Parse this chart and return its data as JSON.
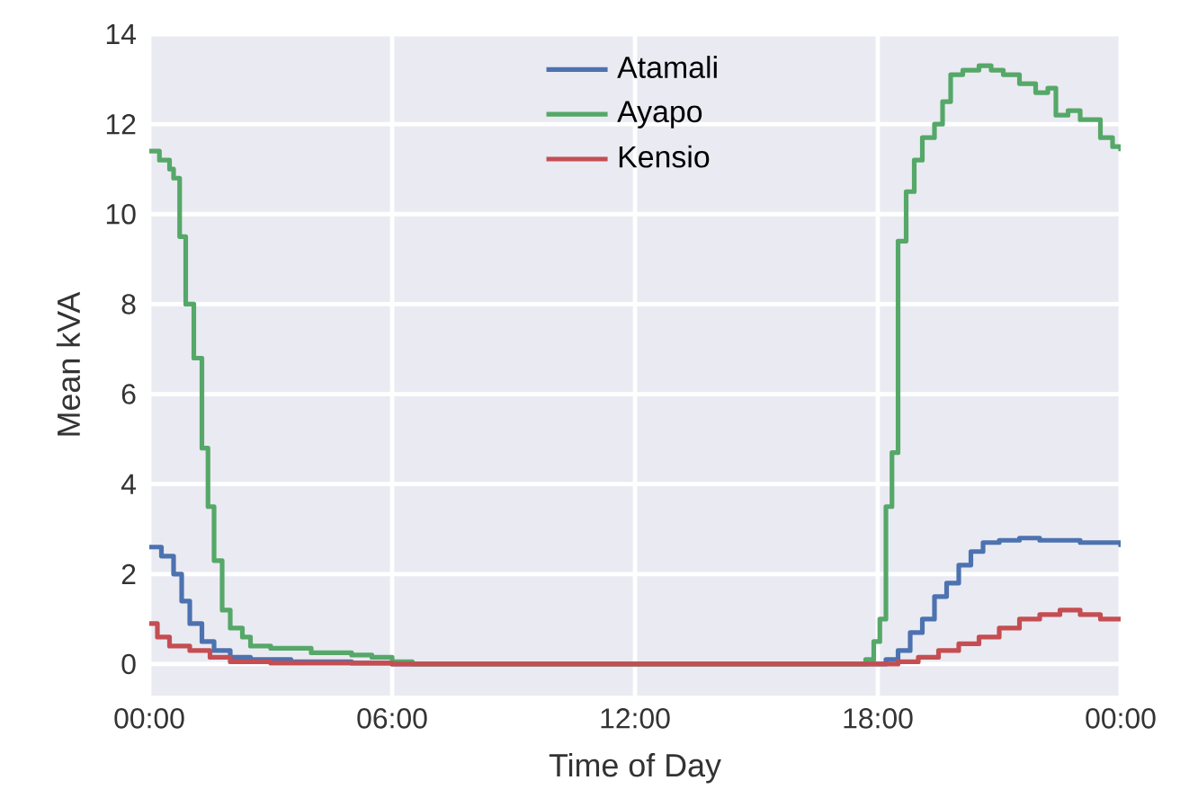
{
  "chart_data": {
    "type": "step",
    "xlabel": "Time of Day",
    "ylabel": "Mean kVA",
    "xlim": [
      0,
      24
    ],
    "ylim": [
      -0.7,
      14
    ],
    "xticks": [
      {
        "value": 0,
        "label": "00:00"
      },
      {
        "value": 6,
        "label": "06:00"
      },
      {
        "value": 12,
        "label": "12:00"
      },
      {
        "value": 18,
        "label": "18:00"
      },
      {
        "value": 24,
        "label": "00:00"
      }
    ],
    "yticks": [
      0,
      2,
      4,
      6,
      8,
      10,
      12,
      14
    ],
    "grid": true,
    "legend": "top",
    "line_style": "solid",
    "series": [
      {
        "name": "Atamali",
        "color": "#4c72b0",
        "x": [
          0,
          0.3,
          0.6,
          0.8,
          1.0,
          1.3,
          1.6,
          2,
          2.5,
          3.5,
          5,
          6,
          12,
          17.8,
          18.2,
          18.5,
          18.8,
          19.1,
          19.4,
          19.7,
          20.0,
          20.3,
          20.6,
          21,
          21.5,
          22,
          23,
          24
        ],
        "values": [
          2.6,
          2.4,
          2.0,
          1.4,
          0.9,
          0.5,
          0.3,
          0.15,
          0.1,
          0.05,
          0.02,
          0,
          0,
          0,
          0.1,
          0.3,
          0.7,
          1.0,
          1.5,
          1.8,
          2.2,
          2.5,
          2.7,
          2.75,
          2.8,
          2.75,
          2.7,
          2.6
        ]
      },
      {
        "name": "Ayapo",
        "color": "#55a868",
        "x": [
          0,
          0.25,
          0.5,
          0.6,
          0.75,
          0.9,
          1.1,
          1.3,
          1.45,
          1.6,
          1.8,
          2.0,
          2.3,
          2.5,
          3,
          3.5,
          4,
          5,
          5.5,
          6,
          6.5,
          12,
          17.5,
          17.7,
          17.9,
          18.05,
          18.2,
          18.35,
          18.5,
          18.7,
          18.9,
          19.1,
          19.4,
          19.6,
          19.8,
          20.1,
          20.5,
          20.8,
          21.1,
          21.5,
          21.9,
          22.2,
          22.4,
          22.7,
          23,
          23.3,
          23.5,
          23.8,
          24
        ],
        "values": [
          11.4,
          11.2,
          11.0,
          10.8,
          9.5,
          8.0,
          6.8,
          4.8,
          3.5,
          2.3,
          1.2,
          0.8,
          0.6,
          0.4,
          0.35,
          0.35,
          0.25,
          0.2,
          0.15,
          0.05,
          0,
          0,
          0,
          0.1,
          0.5,
          1.0,
          3.5,
          4.7,
          9.4,
          10.5,
          11.2,
          11.7,
          12.0,
          12.5,
          13.1,
          13.2,
          13.3,
          13.2,
          13.1,
          12.9,
          12.7,
          12.8,
          12.2,
          12.3,
          12.1,
          12.1,
          11.7,
          11.5,
          11.4
        ]
      },
      {
        "name": "Kensio",
        "color": "#c44e52",
        "x": [
          0,
          0.2,
          0.5,
          1,
          1.5,
          2,
          3,
          6,
          12,
          18,
          18.5,
          19,
          19.5,
          20,
          20.5,
          21,
          21.5,
          22,
          22.5,
          23,
          23.5,
          24
        ],
        "values": [
          0.9,
          0.6,
          0.4,
          0.3,
          0.15,
          0.05,
          0.02,
          0,
          0,
          0,
          0.05,
          0.15,
          0.3,
          0.45,
          0.6,
          0.8,
          1.0,
          1.1,
          1.2,
          1.1,
          1.0,
          0.95
        ]
      }
    ]
  }
}
